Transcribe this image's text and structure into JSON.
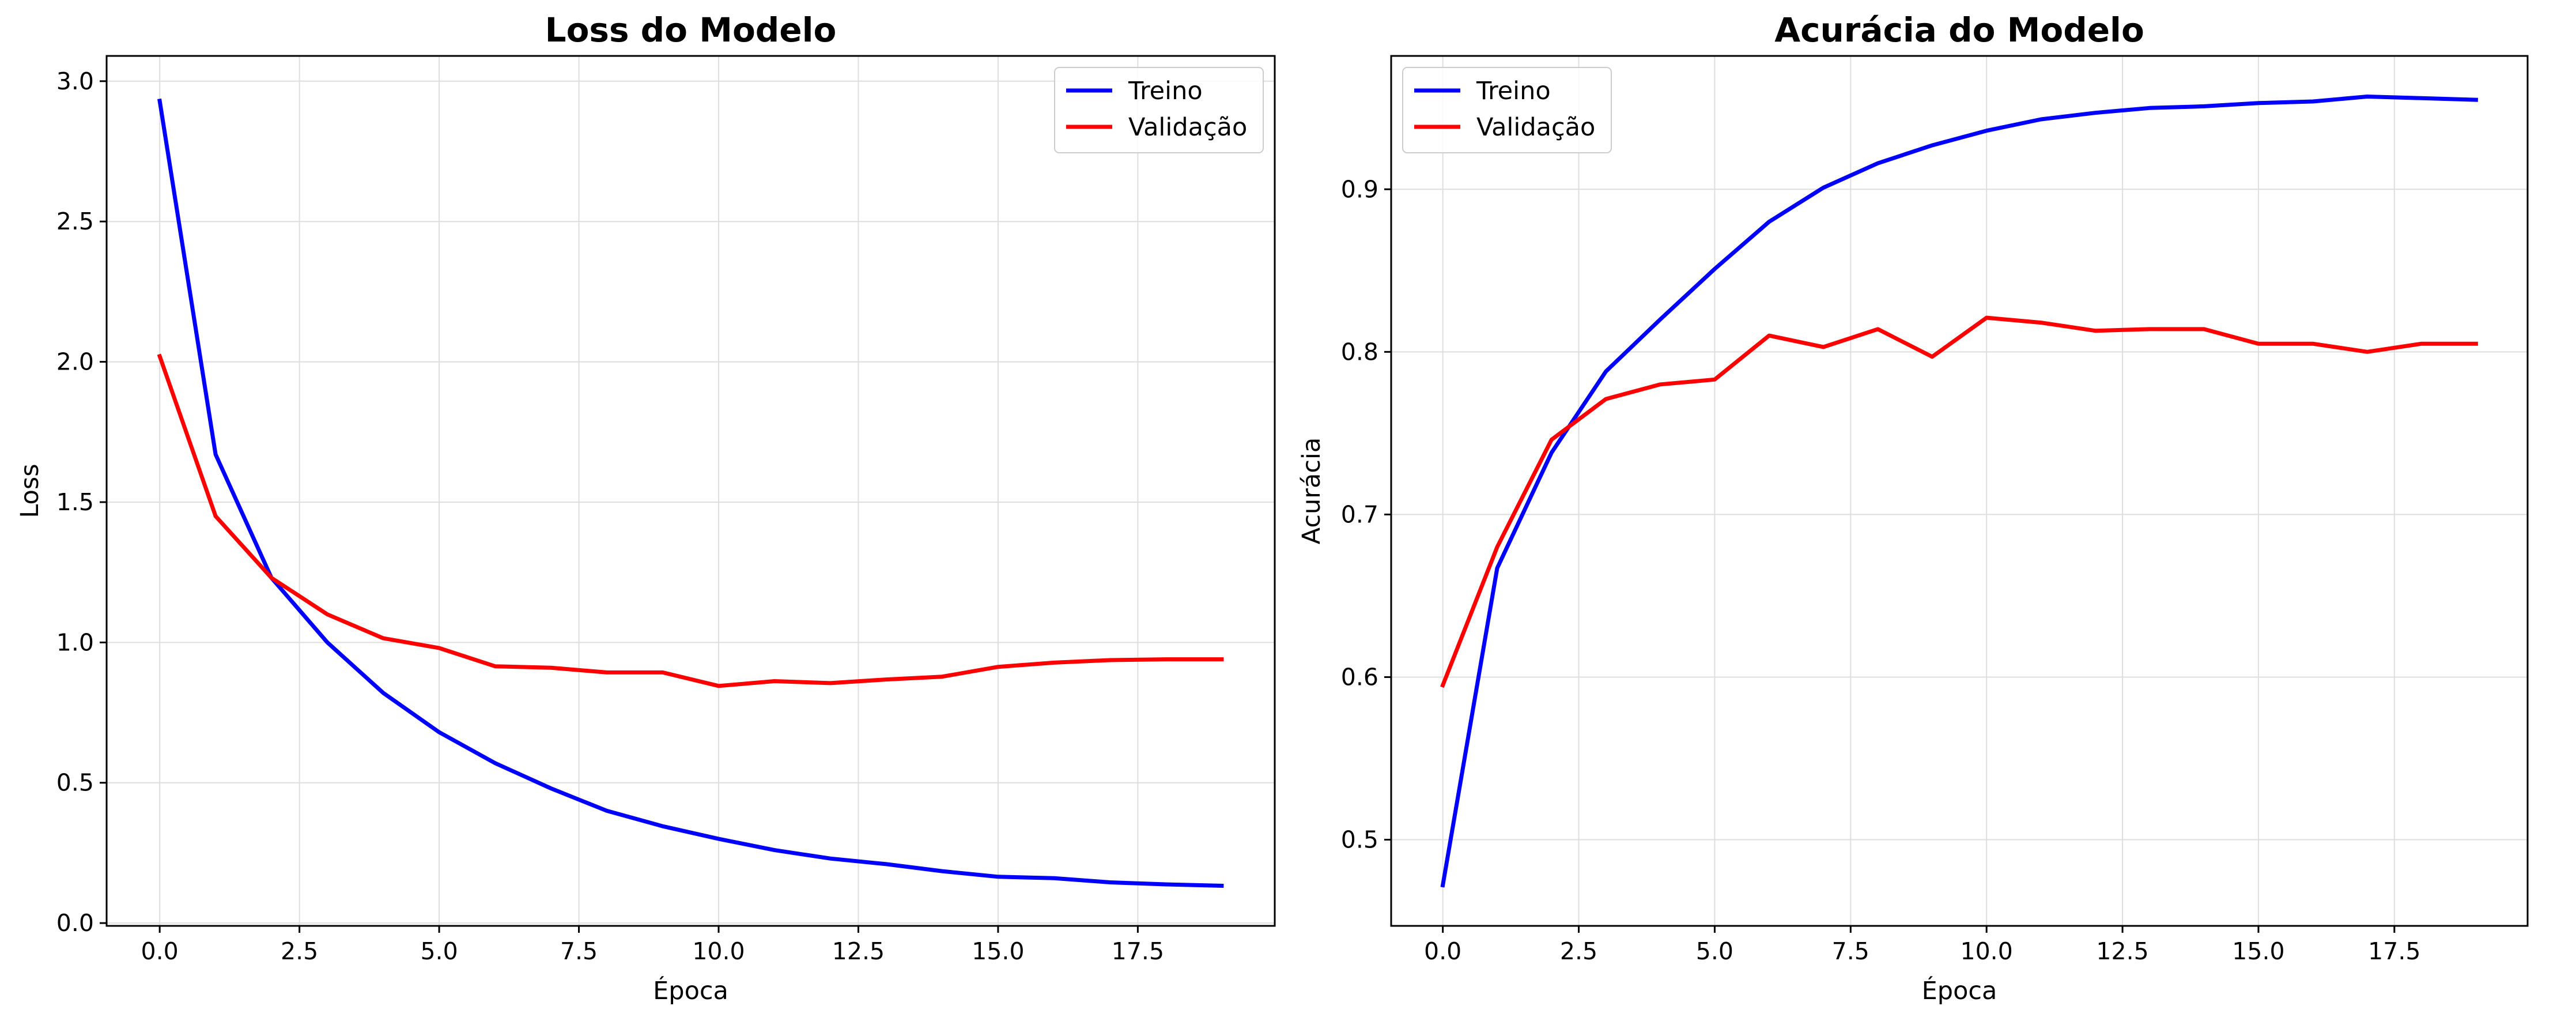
{
  "chart_data": [
    {
      "type": "line",
      "title": "Loss do Modelo",
      "xlabel": "Época",
      "ylabel": "Loss",
      "xlim": [
        -0.95,
        19.95
      ],
      "ylim": [
        -0.01,
        3.09
      ],
      "xticks": [
        0.0,
        2.5,
        5.0,
        7.5,
        10.0,
        12.5,
        15.0,
        17.5
      ],
      "xtick_labels": [
        "0.0",
        "2.5",
        "5.0",
        "7.5",
        "10.0",
        "12.5",
        "15.0",
        "17.5"
      ],
      "yticks": [
        0.0,
        0.5,
        1.0,
        1.5,
        2.0,
        2.5,
        3.0
      ],
      "ytick_labels": [
        "0.0",
        "0.5",
        "1.0",
        "1.5",
        "2.0",
        "2.5",
        "3.0"
      ],
      "grid": true,
      "legend_position": "top-right",
      "x": [
        0,
        1,
        2,
        3,
        4,
        5,
        6,
        7,
        8,
        9,
        10,
        11,
        12,
        13,
        14,
        15,
        16,
        17,
        18,
        19
      ],
      "series": [
        {
          "name": "Treino",
          "color": "#0000ff",
          "values": [
            2.93,
            1.67,
            1.23,
            1.0,
            0.82,
            0.68,
            0.57,
            0.48,
            0.4,
            0.345,
            0.3,
            0.26,
            0.23,
            0.21,
            0.185,
            0.165,
            0.16,
            0.145,
            0.138,
            0.133
          ]
        },
        {
          "name": "Validação",
          "color": "#ff0000",
          "values": [
            2.02,
            1.45,
            1.23,
            1.1,
            1.015,
            0.98,
            0.915,
            0.91,
            0.893,
            0.893,
            0.845,
            0.862,
            0.855,
            0.868,
            0.878,
            0.913,
            0.928,
            0.937,
            0.94,
            0.94
          ]
        }
      ]
    },
    {
      "type": "line",
      "title": "Acurácia do Modelo",
      "xlabel": "Época",
      "ylabel": "Acurácia",
      "xlim": [
        -0.95,
        19.95
      ],
      "ylim": [
        0.447,
        0.982
      ],
      "xticks": [
        0.0,
        2.5,
        5.0,
        7.5,
        10.0,
        12.5,
        15.0,
        17.5
      ],
      "xtick_labels": [
        "0.0",
        "2.5",
        "5.0",
        "7.5",
        "10.0",
        "12.5",
        "15.0",
        "17.5"
      ],
      "yticks": [
        0.5,
        0.6,
        0.7,
        0.8,
        0.9
      ],
      "ytick_labels": [
        "0.5",
        "0.6",
        "0.7",
        "0.8",
        "0.9"
      ],
      "grid": true,
      "legend_position": "top-left",
      "x": [
        0,
        1,
        2,
        3,
        4,
        5,
        6,
        7,
        8,
        9,
        10,
        11,
        12,
        13,
        14,
        15,
        16,
        17,
        18,
        19
      ],
      "series": [
        {
          "name": "Treino",
          "color": "#0000ff",
          "values": [
            0.472,
            0.667,
            0.738,
            0.788,
            0.82,
            0.851,
            0.88,
            0.901,
            0.916,
            0.927,
            0.936,
            0.943,
            0.947,
            0.95,
            0.951,
            0.953,
            0.954,
            0.957,
            0.956,
            0.955
          ]
        },
        {
          "name": "Validação",
          "color": "#ff0000",
          "values": [
            0.595,
            0.68,
            0.746,
            0.771,
            0.78,
            0.783,
            0.81,
            0.803,
            0.814,
            0.797,
            0.821,
            0.818,
            0.813,
            0.814,
            0.814,
            0.805,
            0.805,
            0.8,
            0.805,
            0.805
          ]
        }
      ]
    }
  ]
}
